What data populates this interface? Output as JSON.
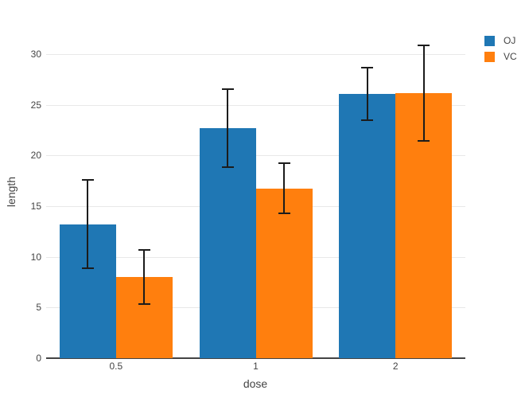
{
  "chart_data": {
    "type": "bar",
    "title": "",
    "xlabel": "dose",
    "ylabel": "length",
    "categories": [
      "0.5",
      "1",
      "2"
    ],
    "series": [
      {
        "name": "OJ",
        "color": "#1f77b4",
        "values": [
          13.23,
          22.7,
          26.06
        ],
        "errors": [
          4.46,
          3.91,
          2.66
        ]
      },
      {
        "name": "VC",
        "color": "#ff7f0e",
        "values": [
          7.98,
          16.77,
          26.14
        ],
        "errors": [
          2.75,
          2.52,
          4.8
        ]
      }
    ],
    "error_bars": "plus-minus, black caps",
    "ylim": [
      0,
      33
    ],
    "yticks": [
      0,
      5,
      10,
      15,
      20,
      25,
      30
    ],
    "grid": true,
    "legend_position": "top-right",
    "colors": {
      "background": "#ffffff",
      "gridline": "#e8e8e8",
      "zeroline": "#444444",
      "text": "#444444",
      "error_bar": "#1c1c1c"
    }
  }
}
